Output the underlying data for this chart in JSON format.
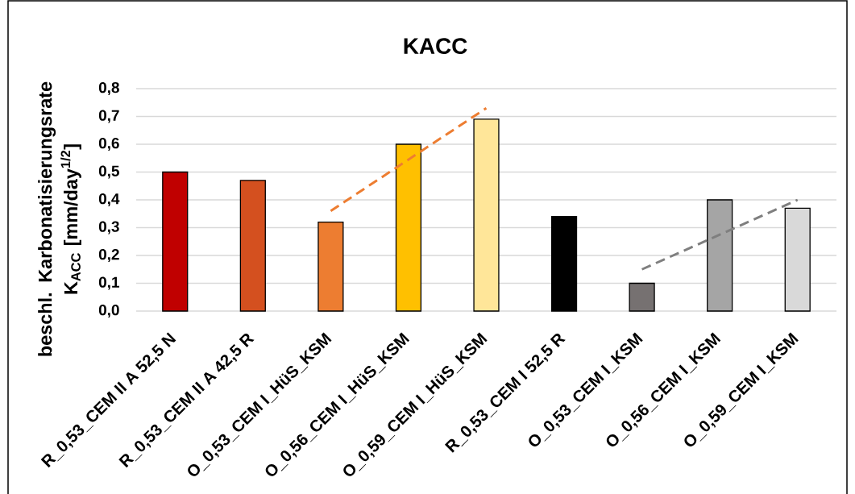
{
  "chart_data": {
    "type": "bar",
    "title": "KACC",
    "ylabel": "beschl. Karbonatisierungsrate K$_{ACC}$ [mm/day$^{1/2}$]",
    "categories": [
      "R_0,53_CEM II A 52,5 N",
      "R_0,53_CEM II A 42,5 R",
      "O_0,53_CEM I_HüS_KSM",
      "O_0,56_CEM I_HüS_KSM",
      "O_0,59_CEM I_HüS_KSM",
      "R_0,53_CEM I 52,5 R",
      "O_0,53_CEM I_KSM",
      "O_0,56_CEM I_KSM",
      "O_0,59_CEM I_KSM"
    ],
    "series": [
      {
        "values": [
          0.5,
          0.47,
          0.32,
          0.6,
          0.69,
          0.34,
          0.1,
          0.4,
          0.37
        ],
        "colors": [
          "#c00000",
          "#d4501f",
          "#ed7d31",
          "#ffc000",
          "#ffe699",
          "#000000",
          "#767171",
          "#a5a5a5",
          "#d9d9d9"
        ]
      },
      {
        "type": "line",
        "x": [
          "O_0,53_CEM I_HüS_KSM",
          "O_0,59_CEM I_HüS_KSM"
        ],
        "values": [
          0.36,
          0.73
        ],
        "color": "#ed7d31",
        "line_style": "dashed"
      },
      {
        "type": "line",
        "x": [
          "O_0,53_CEM I_KSM",
          "O_0,59_CEM I_KSM"
        ],
        "values": [
          0.15,
          0.4
        ],
        "color": "#7f7f7f",
        "line_style": "dashed"
      }
    ],
    "ylim": [
      0,
      0.8
    ],
    "yticks": [
      {
        "value": 0,
        "label": "0,0"
      },
      {
        "value": 0.1,
        "label": "0,1"
      },
      {
        "value": 0.2,
        "label": "0,2"
      },
      {
        "value": 0.3,
        "label": "0,3"
      },
      {
        "value": 0.4,
        "label": "0,4"
      },
      {
        "value": 0.5,
        "label": "0,5"
      },
      {
        "value": 0.6,
        "label": "0,6"
      },
      {
        "value": 0.7,
        "label": "0,7"
      },
      {
        "value": 0.8,
        "label": "0,8"
      }
    ],
    "grid": "y"
  }
}
